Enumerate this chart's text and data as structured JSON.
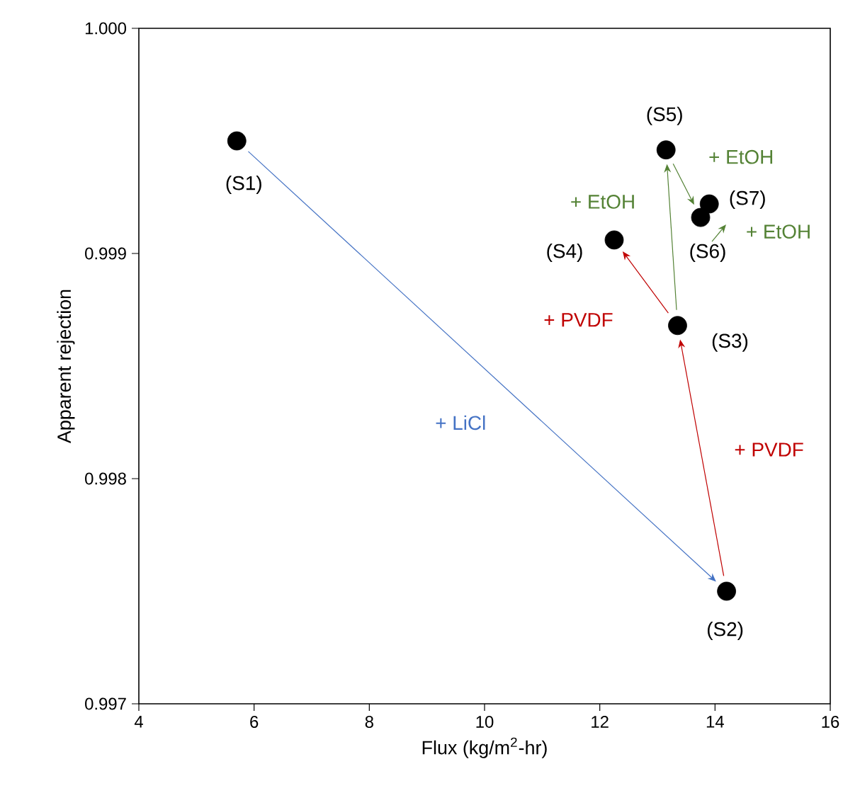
{
  "chart_data": {
    "type": "scatter",
    "xlabel": "Flux (kg/m$^{2}$-hr)",
    "ylabel": "Apparent rejection",
    "xlim": [
      4,
      16
    ],
    "xticks": [
      4,
      6,
      8,
      10,
      12,
      14,
      16
    ],
    "ylim": [
      0.997,
      1.0
    ],
    "yticks": [
      {
        "value": 0.997,
        "label": "0.997"
      },
      {
        "value": 0.998,
        "label": "0.998"
      },
      {
        "value": 0.999,
        "label": "0.999"
      },
      {
        "value": 1.0,
        "label": "1.000"
      }
    ],
    "grid": false,
    "series": [
      {
        "color": "#000000",
        "x": [
          5.7,
          14.2,
          13.35,
          12.25,
          13.15,
          13.75,
          13.9
        ],
        "values": [
          0.9995,
          0.9975,
          0.99868,
          0.99906,
          0.99946,
          0.99916,
          0.99922
        ]
      }
    ],
    "annotations": [
      "(S1)",
      "(S2)",
      "(S3)",
      "(S4)",
      "(S5)",
      "(S6)",
      "(S7)",
      "+ EtOH",
      "+ EtOH",
      "+ EtOH",
      "+ PVDF",
      "+ PVDF",
      "+ LiCl"
    ]
  }
}
